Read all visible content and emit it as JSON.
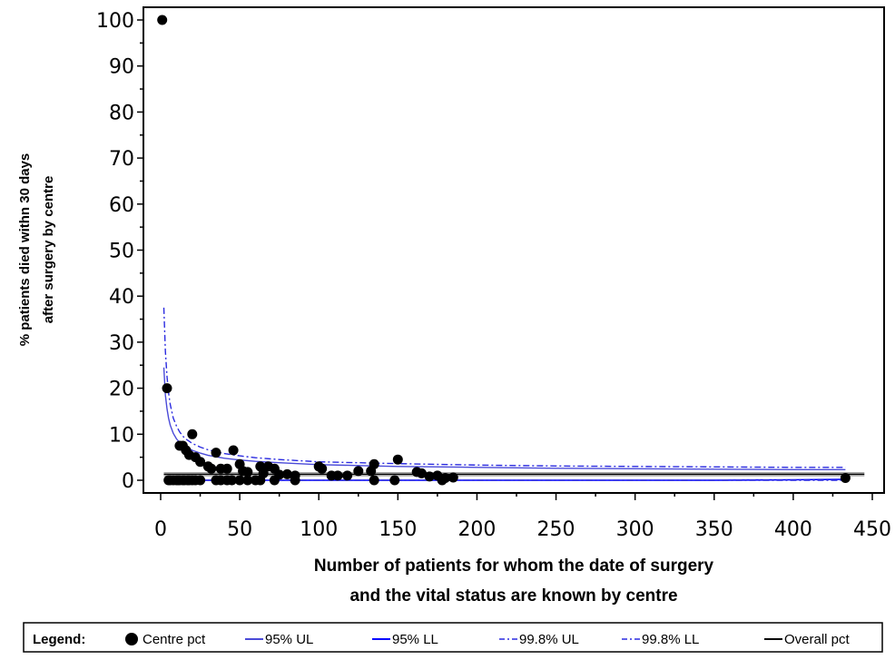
{
  "chart_data": {
    "type": "scatter",
    "xlabel": [
      "Number of patients for whom the date of surgery",
      "and the vital status are known by centre"
    ],
    "ylabel": [
      "% patients died withn 30 days",
      "after surgery by centre"
    ],
    "xlim": [
      0,
      450
    ],
    "ylim": [
      0,
      100
    ],
    "xticks": [
      0,
      50,
      100,
      150,
      200,
      250,
      300,
      350,
      400,
      450
    ],
    "yticks": [
      0,
      10,
      20,
      30,
      40,
      50,
      60,
      70,
      80,
      90,
      100
    ],
    "overall_pct": 1.3,
    "overall_x_range": [
      2,
      445
    ],
    "limit_x_range": [
      2,
      433
    ],
    "limit_curve_x": [
      2,
      3,
      4,
      5,
      6,
      8,
      10,
      12,
      15,
      20,
      25,
      30,
      40,
      50,
      60,
      75,
      100,
      125,
      150,
      200,
      250,
      300,
      350,
      400,
      433
    ],
    "series": [
      {
        "name": "Centre pct",
        "style": "marker",
        "color": "#000000",
        "points": [
          [
            1,
            100
          ],
          [
            4,
            20
          ],
          [
            5,
            0
          ],
          [
            6,
            0
          ],
          [
            8,
            0
          ],
          [
            10,
            0
          ],
          [
            11,
            0
          ],
          [
            12,
            0
          ],
          [
            14,
            0
          ],
          [
            15,
            0
          ],
          [
            17,
            0
          ],
          [
            18,
            0
          ],
          [
            20,
            0
          ],
          [
            22,
            0
          ],
          [
            25,
            0
          ],
          [
            12,
            7.5
          ],
          [
            14,
            7.5
          ],
          [
            16,
            6.5
          ],
          [
            18,
            5.5
          ],
          [
            20,
            10
          ],
          [
            22,
            5
          ],
          [
            25,
            4
          ],
          [
            30,
            3
          ],
          [
            32,
            2.5
          ],
          [
            35,
            6
          ],
          [
            38,
            2.5
          ],
          [
            42,
            2.5
          ],
          [
            46,
            6.5
          ],
          [
            50,
            3.5
          ],
          [
            52,
            2
          ],
          [
            55,
            1.8
          ],
          [
            63,
            3
          ],
          [
            65,
            1.5
          ],
          [
            68,
            3
          ],
          [
            72,
            2.5
          ],
          [
            75,
            1.2
          ],
          [
            80,
            1.3
          ],
          [
            85,
            1
          ],
          [
            100,
            3
          ],
          [
            102,
            2.5
          ],
          [
            108,
            1
          ],
          [
            112,
            1
          ],
          [
            118,
            1
          ],
          [
            125,
            2
          ],
          [
            133,
            2
          ],
          [
            135,
            3.5
          ],
          [
            150,
            4.5
          ],
          [
            162,
            1.8
          ],
          [
            165,
            1.5
          ],
          [
            170,
            0.8
          ],
          [
            175,
            1
          ],
          [
            180,
            0.5
          ],
          [
            185,
            0.6
          ],
          [
            35,
            0
          ],
          [
            38,
            0
          ],
          [
            42,
            0
          ],
          [
            45,
            0
          ],
          [
            50,
            0
          ],
          [
            55,
            0
          ],
          [
            60,
            0
          ],
          [
            63,
            0
          ],
          [
            72,
            0
          ],
          [
            85,
            0
          ],
          [
            135,
            0
          ],
          [
            148,
            0
          ],
          [
            178,
            0
          ],
          [
            433,
            0.5
          ]
        ]
      },
      {
        "name": "95% UL",
        "style": "solid",
        "color": "#4a4ad8",
        "y": [
          24.5,
          18.5,
          15.5,
          13.5,
          12,
          10.2,
          9,
          8.2,
          7.4,
          6.5,
          5.9,
          5.4,
          4.8,
          4.4,
          4.1,
          3.8,
          3.4,
          3.2,
          3.0,
          2.8,
          2.6,
          2.5,
          2.4,
          2.3,
          2.3
        ]
      },
      {
        "name": "95% LL",
        "style": "solid",
        "color": "#0000ff",
        "y": [
          0,
          0,
          0,
          0,
          0,
          0,
          0,
          0,
          0,
          0,
          0,
          0,
          0,
          0,
          0,
          0,
          0,
          0,
          0,
          0,
          0,
          0,
          0,
          0.1,
          0.2
        ]
      },
      {
        "name": "99.8% UL",
        "style": "dashdot",
        "color": "#2a2ae0",
        "y": [
          37.5,
          28,
          22.5,
          19,
          16.5,
          13.5,
          11.8,
          10.5,
          9.2,
          8.0,
          7.2,
          6.6,
          5.8,
          5.3,
          4.9,
          4.5,
          4.0,
          3.8,
          3.6,
          3.3,
          3.1,
          3.0,
          2.9,
          2.8,
          2.8
        ]
      },
      {
        "name": "99.8% LL",
        "style": "dashdot",
        "color": "#2a2ae0",
        "y": [
          0,
          0,
          0,
          0,
          0,
          0,
          0,
          0,
          0,
          0,
          0,
          0,
          0,
          0,
          0,
          0,
          0,
          0,
          0,
          0,
          0,
          0,
          0,
          0,
          0
        ]
      },
      {
        "name": "Overall pct",
        "style": "solid",
        "color": "#000000"
      }
    ],
    "legend": {
      "title": "Legend:",
      "items": [
        "Centre pct",
        "95% UL",
        "95% LL",
        "99.8% UL",
        "99.8% LL",
        "Overall pct"
      ],
      "placement": "bottom"
    }
  }
}
